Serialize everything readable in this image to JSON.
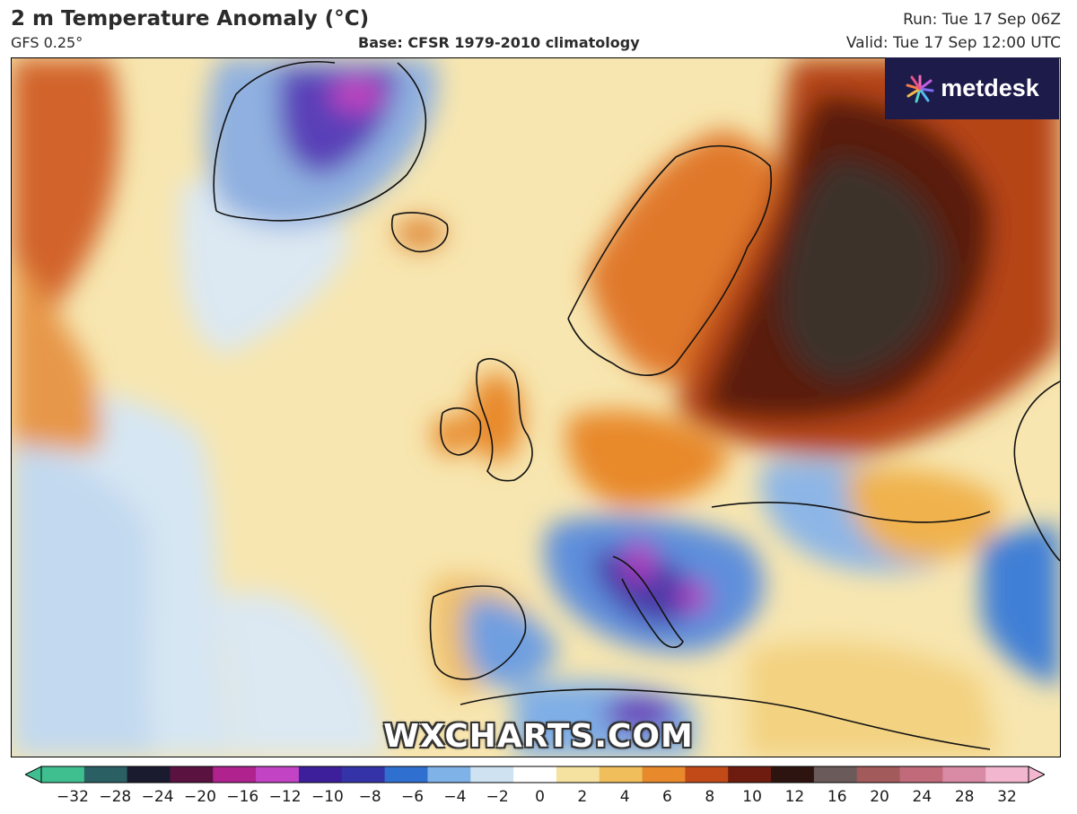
{
  "header": {
    "title": "2 m Temperature Anomaly (°C)",
    "model": "GFS 0.25°",
    "base": "Base: CFSR 1979-2010 climatology",
    "run": "Run: Tue 17 Sep 06Z",
    "valid": "Valid: Tue 17 Sep 12:00 UTC"
  },
  "branding": {
    "logo_text": "metdesk",
    "watermark": "WXCHARTS.COM"
  },
  "colorbar": {
    "ticks": [
      "−32",
      "−28",
      "−24",
      "−20",
      "−16",
      "−12",
      "−10",
      "−8",
      "−6",
      "−4",
      "−2",
      "0",
      "2",
      "4",
      "6",
      "8",
      "10",
      "12",
      "16",
      "20",
      "24",
      "28",
      "32"
    ],
    "colors": [
      "#3fbf8f",
      "#2a5f63",
      "#1b1b2f",
      "#5a1240",
      "#b0238f",
      "#c244c4",
      "#3d1f9b",
      "#3434a8",
      "#2f6fd0",
      "#7fb2e6",
      "#cfe2f2",
      "#ffffff",
      "#f5e2a0",
      "#f0bf5c",
      "#e8892c",
      "#c24a18",
      "#6e1c10",
      "#2e1410",
      "#6b5a5a",
      "#a35a5a",
      "#c06a7a",
      "#d98aa5",
      "#f2b6cf"
    ]
  },
  "colors": {
    "ocean_neutral": "#f6e2a6",
    "cold_blue": "#3f7fd6",
    "cold_purple": "#5b2aa8",
    "warm_orange": "#e8892c",
    "hot_red": "#b6401a",
    "extreme_dark": "#2e1712"
  }
}
